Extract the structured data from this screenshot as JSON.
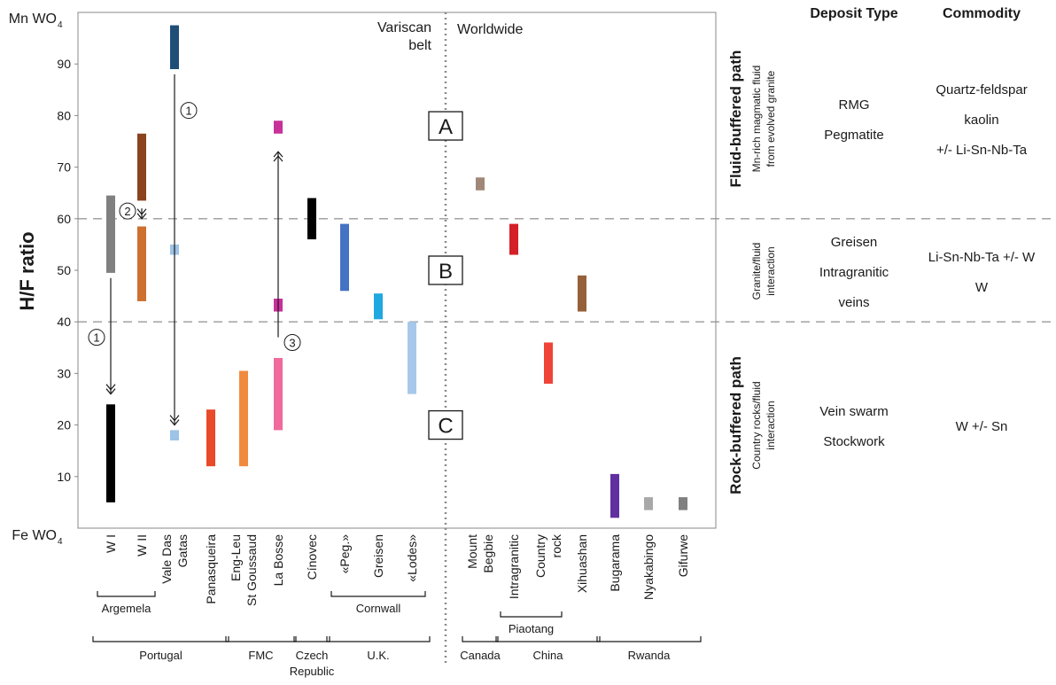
{
  "chart_data": {
    "type": "bar",
    "ylabel": "H/F ratio",
    "ylim": [
      0,
      100
    ],
    "yticks": [
      10,
      20,
      30,
      40,
      50,
      60,
      70,
      80,
      90
    ],
    "y_top_label": "Mn WO",
    "y_bottom_label": "Fe WO",
    "y_label_subscript": "4",
    "grid": false,
    "thresholds": [
      40,
      60
    ],
    "region_left": [
      "Variscan",
      "belt"
    ],
    "region_right": "Worldwide",
    "zones": [
      {
        "label": "A",
        "y": 78
      },
      {
        "label": "B",
        "y": 50
      },
      {
        "label": "C",
        "y": 20
      }
    ],
    "categories": [
      {
        "key": "wi",
        "lines": [
          "W I"
        ]
      },
      {
        "key": "wii",
        "lines": [
          "W II"
        ]
      },
      {
        "key": "vale",
        "lines": [
          "Vale Das",
          "Gatas"
        ]
      },
      {
        "key": "pana",
        "lines": [
          "Panasqueira"
        ]
      },
      {
        "key": "eng",
        "lines": [
          "Eng-Leu",
          "St Goussaud"
        ]
      },
      {
        "key": "bosse",
        "lines": [
          "La Bosse"
        ]
      },
      {
        "key": "cinovec",
        "lines": [
          "Cínovec"
        ]
      },
      {
        "key": "peg",
        "lines": [
          "«Peg.»"
        ]
      },
      {
        "key": "greisen",
        "lines": [
          "Greisen"
        ]
      },
      {
        "key": "lodes",
        "lines": [
          "«Lodes»"
        ]
      },
      {
        "key": "mount",
        "lines": [
          "Mount",
          "Begbie"
        ]
      },
      {
        "key": "intra",
        "lines": [
          "Intragranitic"
        ]
      },
      {
        "key": "country",
        "lines": [
          "Country",
          "rock"
        ]
      },
      {
        "key": "xihua",
        "lines": [
          "Xihuashan"
        ]
      },
      {
        "key": "buga",
        "lines": [
          "Bugarama"
        ]
      },
      {
        "key": "nyaka",
        "lines": [
          "Nyakabingo"
        ]
      },
      {
        "key": "gifu",
        "lines": [
          "Gifurwe"
        ]
      }
    ],
    "series": [
      {
        "category": "wi",
        "low": 49.5,
        "high": 64.5,
        "color": "#808080"
      },
      {
        "category": "wi",
        "low": 5,
        "high": 24,
        "color": "#000000"
      },
      {
        "category": "wii",
        "low": 63.5,
        "high": 76.5,
        "color": "#8b4320"
      },
      {
        "category": "wii",
        "low": 44,
        "high": 58.5,
        "color": "#cd7030"
      },
      {
        "category": "vale",
        "low": 89,
        "high": 97.5,
        "color": "#1f4e79"
      },
      {
        "category": "vale",
        "low": 53,
        "high": 55,
        "color": "#9dc3e6"
      },
      {
        "category": "vale",
        "low": 17,
        "high": 19,
        "color": "#9dc3e6"
      },
      {
        "category": "pana",
        "low": 12,
        "high": 23,
        "color": "#e84a2a"
      },
      {
        "category": "eng",
        "low": 12,
        "high": 30.5,
        "color": "#f08a3e"
      },
      {
        "category": "bosse",
        "low": 76.5,
        "high": 79,
        "color": "#c8309a"
      },
      {
        "category": "bosse",
        "low": 42,
        "high": 44.5,
        "color": "#c8309a"
      },
      {
        "category": "bosse",
        "low": 19,
        "high": 33,
        "color": "#f06a9c"
      },
      {
        "category": "cinovec",
        "low": 56,
        "high": 64,
        "color": "#000000"
      },
      {
        "category": "peg",
        "low": 46,
        "high": 59,
        "color": "#4472c4"
      },
      {
        "category": "greisen",
        "low": 40.5,
        "high": 45.5,
        "color": "#20a8e0"
      },
      {
        "category": "lodes",
        "low": 26,
        "high": 40,
        "color": "#a7c8ea"
      },
      {
        "category": "mount",
        "low": 65.5,
        "high": 68,
        "color": "#a08878"
      },
      {
        "category": "intra",
        "low": 53,
        "high": 59,
        "color": "#d42027"
      },
      {
        "category": "country",
        "low": 28,
        "high": 36,
        "color": "#f04438"
      },
      {
        "category": "xihua",
        "low": 42,
        "high": 49,
        "color": "#96603a"
      },
      {
        "category": "buga",
        "low": 2,
        "high": 10.5,
        "color": "#6030a0"
      },
      {
        "category": "nyaka",
        "low": 3.5,
        "high": 6,
        "color": "#a8a8a8"
      },
      {
        "category": "gifu",
        "low": 3.5,
        "high": 6,
        "color": "#808080"
      }
    ],
    "arrows": [
      {
        "category": "wi",
        "from": 48.5,
        "to": 26,
        "label": "1",
        "label_y": 37
      },
      {
        "category": "wii",
        "from": 62,
        "to": 60,
        "label": "2",
        "label_y": 61.5
      },
      {
        "category": "vale",
        "from": 88,
        "to": 20,
        "label": "1",
        "label_y": 81
      },
      {
        "category": "bosse",
        "from": 37,
        "to": 73,
        "label": "3",
        "label_y": 36
      }
    ],
    "groups": [
      {
        "label": "Argemela",
        "from": "wi",
        "to": "wii",
        "level": 1
      },
      {
        "label": "Cornwall",
        "from": "peg",
        "to": "lodes",
        "level": 1
      },
      {
        "label": "Piaotang",
        "from": "intra",
        "to": "country",
        "level": 1
      },
      {
        "label": "Portugal",
        "from": "wi",
        "to": "pana",
        "level": 2
      },
      {
        "label": "FMC",
        "from": "eng",
        "to": "bosse",
        "level": 2
      },
      {
        "label": "Czech Republic",
        "from": "cinovec",
        "to": "cinovec",
        "level": 2
      },
      {
        "label": "U.K.",
        "from": "peg",
        "to": "lodes",
        "level": 2
      },
      {
        "label": "Canada",
        "from": "mount",
        "to": "mount",
        "level": 2
      },
      {
        "label": "China",
        "from": "intra",
        "to": "xihua",
        "level": 2
      },
      {
        "label": "Rwanda",
        "from": "buga",
        "to": "gifu",
        "level": 2
      }
    ]
  },
  "side_panel": {
    "headers": {
      "deposit": "Deposit Type",
      "commodity": "Commodity"
    },
    "rows": [
      {
        "path": "Fluid-buffered path",
        "process": [
          "Mn-rich magmatic fluid",
          "from evolved granite"
        ],
        "deposit": [
          "RMG",
          "Pegmatite"
        ],
        "commodity": [
          "Quartz-feldspar",
          "kaolin",
          "+/- Li-Sn-Nb-Ta"
        ]
      },
      {
        "path": "",
        "process": [
          "Granite/fluid",
          "interaction"
        ],
        "deposit": [
          "Greisen",
          "Intragranitic",
          "veins"
        ],
        "commodity": [
          "Li-Sn-Nb-Ta +/- W",
          "W"
        ]
      },
      {
        "path": "Rock-buffered path",
        "process": [
          "Country rocks/fluid",
          "interaction"
        ],
        "deposit": [
          "Vein swarm",
          "Stockwork"
        ],
        "commodity": [
          "W +/- Sn"
        ]
      }
    ]
  }
}
